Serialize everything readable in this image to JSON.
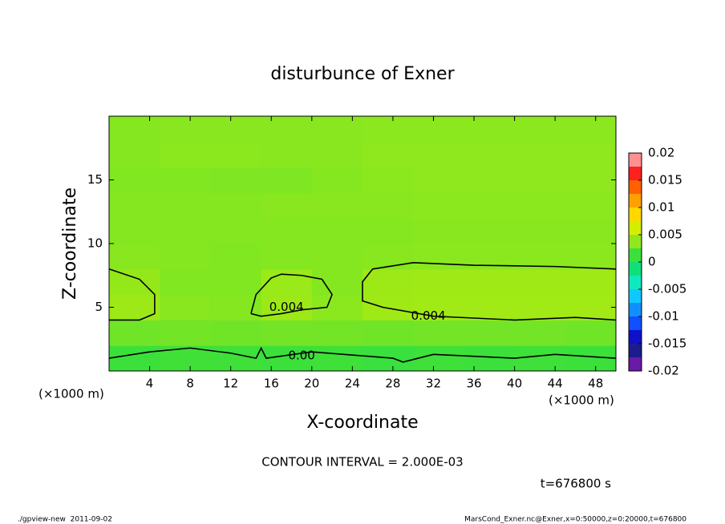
{
  "chart_data": {
    "type": "contour",
    "title": "disturbunce of Exner",
    "x_label": "X-coordinate",
    "y_label": "Z-coordinate",
    "x_unit": "(×1000 m)",
    "y_unit": "(×1000 m)",
    "xlim": [
      0,
      50
    ],
    "ylim": [
      0,
      20
    ],
    "xticks": [
      4,
      8,
      12,
      16,
      20,
      24,
      28,
      32,
      36,
      40,
      44,
      48
    ],
    "yticks": [
      5,
      10,
      15
    ],
    "x": [
      2.5,
      7.5,
      12.5,
      17.5,
      22.5,
      27.5,
      32.5,
      37.5,
      42.5,
      47.5
    ],
    "z": [
      1,
      3,
      5,
      7,
      9,
      11,
      13,
      15,
      17,
      19
    ],
    "values": [
      [
        0.0012,
        0.0014,
        0.0013,
        0.0012,
        0.0013,
        0.0011,
        0.0013,
        0.0012,
        0.0013,
        0.0012
      ],
      [
        0.0028,
        0.0029,
        0.0028,
        0.0029,
        0.0029,
        0.0028,
        0.0029,
        0.0029,
        0.0029,
        0.0028
      ],
      [
        0.0042,
        0.0035,
        0.0034,
        0.0042,
        0.0036,
        0.0043,
        0.0044,
        0.0044,
        0.0044,
        0.0044
      ],
      [
        0.0039,
        0.0033,
        0.0033,
        0.0041,
        0.0034,
        0.0042,
        0.0043,
        0.0043,
        0.0043,
        0.0043
      ],
      [
        0.0035,
        0.0034,
        0.0033,
        0.0034,
        0.0034,
        0.0035,
        0.0036,
        0.0036,
        0.0036,
        0.0036
      ],
      [
        0.0034,
        0.0034,
        0.0034,
        0.0034,
        0.0034,
        0.0034,
        0.0035,
        0.0035,
        0.0035,
        0.0035
      ],
      [
        0.0034,
        0.0034,
        0.0034,
        0.0035,
        0.0035,
        0.0035,
        0.0036,
        0.0036,
        0.0036,
        0.0036
      ],
      [
        0.0033,
        0.0033,
        0.0032,
        0.0032,
        0.0034,
        0.0036,
        0.0037,
        0.0037,
        0.0037,
        0.0037
      ],
      [
        0.0034,
        0.0036,
        0.0036,
        0.0035,
        0.0035,
        0.0037,
        0.0037,
        0.0037,
        0.0037,
        0.0037
      ],
      [
        0.0034,
        0.0035,
        0.0035,
        0.0035,
        0.0035,
        0.0036,
        0.0036,
        0.0036,
        0.0036,
        0.0036
      ]
    ],
    "colorbar": {
      "levels": [
        -0.02,
        -0.0175,
        -0.015,
        -0.0125,
        -0.01,
        -0.0075,
        -0.005,
        -0.0025,
        0,
        0.0025,
        0.005,
        0.0075,
        0.01,
        0.0125,
        0.015,
        0.0175,
        0.02
      ],
      "colors": [
        "#6a1aa8",
        "#1c1c8c",
        "#1010c8",
        "#1050ff",
        "#1090ff",
        "#10c8ff",
        "#10e8c0",
        "#10e078",
        "#3ce03a",
        "#90e81c",
        "#d4ee00",
        "#ffd800",
        "#ffa000",
        "#ff6000",
        "#ff2020",
        "#ff9090"
      ],
      "ticks": [
        0.02,
        0.015,
        0.01,
        0.005,
        0,
        -0.005,
        -0.01,
        -0.015,
        -0.02
      ]
    },
    "contours": [
      {
        "level": 0.004,
        "label": "0.004",
        "x": [
          0,
          3,
          4.5,
          4.5,
          3,
          0,
          null,
          14,
          14.5,
          16,
          17,
          19,
          21,
          22,
          21.5,
          19,
          17,
          15,
          14,
          null,
          50,
          44,
          36,
          30,
          26,
          25,
          25,
          27,
          32,
          40,
          46,
          50
        ],
        "y": [
          8,
          7.2,
          6,
          4.5,
          4,
          4,
          null,
          4.5,
          6,
          7.3,
          7.6,
          7.5,
          7.2,
          6,
          5,
          4.8,
          4.5,
          4.3,
          4.5,
          null,
          8,
          8.2,
          8.3,
          8.5,
          8,
          7,
          5.5,
          5,
          4.3,
          4,
          4.2,
          4
        ],
        "label_x": [
          17.5,
          31.5
        ],
        "label_y": [
          5,
          4.3
        ]
      },
      {
        "level": 0.002,
        "label": "0.00",
        "x": [
          0,
          4,
          8,
          12,
          14.5,
          15,
          15.5,
          20,
          28,
          29,
          32,
          40,
          44,
          50
        ],
        "y": [
          1,
          1.5,
          1.8,
          1.4,
          1,
          1.8,
          1,
          1.5,
          1,
          0.7,
          1.3,
          1,
          1.3,
          1
        ],
        "label_x": [
          19
        ],
        "label_y": [
          1.2
        ]
      }
    ],
    "contour_interval": "CONTOUR INTERVAL = 2.000E-03",
    "time": "t=676800 s",
    "footer_left": "./gpview-new  2011-09-02",
    "footer_right": "MarsCond_Exner.nc@Exner,x=0:50000,z=0:20000,t=676800"
  }
}
